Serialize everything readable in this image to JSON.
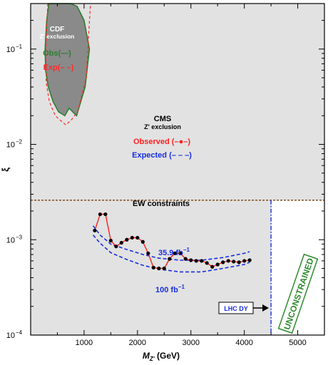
{
  "chart_data": {
    "type": "line",
    "xlabel": "M_Z' (GeV)",
    "xlabel_main": "M",
    "xlabel_sub": "Z'",
    "xlabel_unit": " (GeV)",
    "ylabel": "ξ",
    "xlim": [
      0,
      5500
    ],
    "ylim": [
      0.0001,
      0.3
    ],
    "y_scale": "log",
    "x_ticks": [
      1000,
      2000,
      3000,
      4000,
      5000
    ],
    "x_tick_labels": [
      "1000",
      "2000",
      "3000",
      "4000",
      "5000"
    ],
    "y_ticks": [
      0.0001,
      0.001,
      0.01,
      0.1
    ],
    "y_tick_labels": [
      {
        "base": "10",
        "exp": "−4"
      },
      {
        "base": "10",
        "exp": "−3"
      },
      {
        "base": "10",
        "exp": "−2"
      },
      {
        "base": "10",
        "exp": "−1"
      }
    ],
    "colors": {
      "background": "#e2e2e2",
      "cdf_fill": "#8a8a8a",
      "cdf_observed": "#2e7d32",
      "cdf_expected": "#ff2a2a",
      "cms_observed": "#ff2020",
      "cms_expected": "#1a2ee0",
      "ew_line": "#8b5a2b",
      "lhc_dy": "#1a2ee0",
      "unconstrained": "#2e8b2e",
      "marker": "#000000"
    },
    "cdf": {
      "title": "CDF",
      "subtitle": "Z' exclusion",
      "observed_label": "Obs(—)",
      "expected_label": "Exp(– –)",
      "observed": {
        "x": [
          340,
          300,
          270,
          280,
          330,
          420,
          520,
          640,
          720,
          860,
          1020,
          1100,
          1000,
          870,
          750,
          540,
          340
        ],
        "y": [
          0.3,
          0.2,
          0.1,
          0.06,
          0.04,
          0.028,
          0.022,
          0.02,
          0.024,
          0.02,
          0.04,
          0.1,
          0.2,
          0.28,
          0.3,
          0.3,
          0.3
        ]
      },
      "expected": {
        "x": [
          320,
          285,
          290,
          350,
          460,
          600,
          660,
          760,
          880,
          1040,
          1120
        ],
        "y": [
          0.3,
          0.1,
          0.045,
          0.028,
          0.02,
          0.017,
          0.016,
          0.018,
          0.022,
          0.05,
          0.3
        ]
      }
    },
    "cms": {
      "title": "CMS",
      "subtitle": "Z' exclusion",
      "observed_label": "Observed (–●–)",
      "expected_label": "Expected (– – –)",
      "observed": {
        "x": [
          1200,
          1300,
          1400,
          1500,
          1600,
          1700,
          1800,
          1900,
          2000,
          2100,
          2200,
          2300,
          2400,
          2500,
          2600,
          2700,
          2800,
          2900,
          3000,
          3100,
          3200,
          3300,
          3400,
          3500,
          3600,
          3700,
          3800,
          3900,
          4000,
          4100
        ],
        "y": [
          0.00125,
          0.00185,
          0.00185,
          0.00098,
          0.00085,
          0.00093,
          0.001,
          0.00105,
          0.00105,
          0.00095,
          0.00072,
          0.00051,
          0.0005,
          0.0005,
          0.00063,
          0.00072,
          0.00072,
          0.00063,
          0.00061,
          0.0006,
          0.0006,
          0.00057,
          0.00052,
          0.00055,
          0.00058,
          0.0006,
          0.00059,
          0.00058,
          0.0006,
          0.00061
        ]
      },
      "expected_36": {
        "label": "35.9 fb⁻¹",
        "label_main": "35.9 fb",
        "label_sup": "−1",
        "x": [
          1170,
          1300,
          1500,
          1800,
          2100,
          2400,
          2800,
          3200,
          3600,
          4000,
          4100
        ],
        "y": [
          0.0014,
          0.00112,
          0.0009,
          0.00079,
          0.0007,
          0.00064,
          0.00061,
          0.00061,
          0.00065,
          0.00072,
          0.00075
        ]
      },
      "expected_100": {
        "label": "100 fb⁻¹",
        "label_main": "100 fb",
        "label_sup": "−1",
        "x": [
          1170,
          1300,
          1500,
          1800,
          2100,
          2400,
          2800,
          3200,
          3600,
          4000,
          4100
        ],
        "y": [
          0.00112,
          0.00092,
          0.00073,
          0.00062,
          0.00054,
          0.00049,
          0.00046,
          0.00046,
          0.0005,
          0.00055,
          0.00058
        ]
      }
    },
    "ew": {
      "label": "EW constraints",
      "y": 0.0026
    },
    "lhc_dy": {
      "label": "LHC DY",
      "x": 4500
    },
    "unconstrained_label": "UNCONSTRAINED"
  }
}
